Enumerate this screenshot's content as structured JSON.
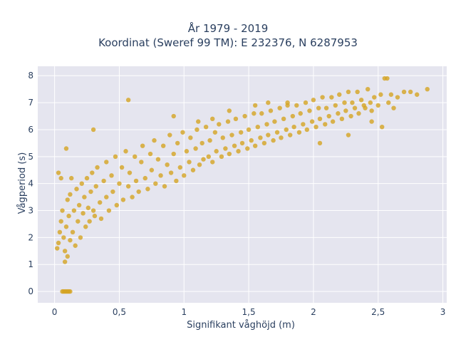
{
  "chart_data": {
    "type": "scatter",
    "title": "År 1979 - 2019",
    "subtitle": "Koordinat (Sweref 99 TM): E 232376, N 6287953",
    "xlabel": "Signifikant våghöjd (m)",
    "ylabel": "Vågperiod (s)",
    "xlim": [
      -0.13,
      3.03
    ],
    "ylim": [
      -0.42,
      8.35
    ],
    "x_ticks": [
      0,
      0.5,
      1,
      1.5,
      2,
      2.5,
      3
    ],
    "x_tick_labels": [
      "0",
      "0,5",
      "1",
      "1,5",
      "2",
      "2,5",
      "3"
    ],
    "y_ticks": [
      0,
      1,
      2,
      3,
      4,
      5,
      6,
      7,
      8
    ],
    "y_tick_labels": [
      "0",
      "1",
      "2",
      "3",
      "4",
      "5",
      "6",
      "7",
      "8"
    ],
    "grid": true,
    "marker_color": "#d4a422",
    "plot_background": "#e5e5ef",
    "series": [
      {
        "points": [
          [
            0.02,
            1.6
          ],
          [
            0.03,
            1.8
          ],
          [
            0.04,
            2.2
          ],
          [
            0.05,
            2.6
          ],
          [
            0.06,
            3.0
          ],
          [
            0.07,
            2.0
          ],
          [
            0.08,
            1.1
          ],
          [
            0.08,
            1.5
          ],
          [
            0.09,
            2.4
          ],
          [
            0.1,
            1.3
          ],
          [
            0.1,
            3.4
          ],
          [
            0.11,
            2.8
          ],
          [
            0.12,
            1.9
          ],
          [
            0.12,
            3.6
          ],
          [
            0.13,
            4.2
          ],
          [
            0.14,
            2.2
          ],
          [
            0.15,
            3.0
          ],
          [
            0.16,
            1.7
          ],
          [
            0.17,
            3.8
          ],
          [
            0.18,
            2.6
          ],
          [
            0.19,
            3.2
          ],
          [
            0.2,
            2.0
          ],
          [
            0.21,
            4.0
          ],
          [
            0.22,
            2.9
          ],
          [
            0.23,
            3.5
          ],
          [
            0.24,
            2.4
          ],
          [
            0.25,
            4.2
          ],
          [
            0.26,
            3.1
          ],
          [
            0.27,
            2.6
          ],
          [
            0.28,
            3.7
          ],
          [
            0.29,
            4.4
          ],
          [
            0.3,
            3.0
          ],
          [
            0.31,
            2.8
          ],
          [
            0.32,
            3.9
          ],
          [
            0.33,
            4.6
          ],
          [
            0.35,
            3.3
          ],
          [
            0.36,
            2.7
          ],
          [
            0.38,
            4.1
          ],
          [
            0.4,
            3.5
          ],
          [
            0.4,
            4.8
          ],
          [
            0.42,
            3.0
          ],
          [
            0.44,
            4.3
          ],
          [
            0.45,
            3.7
          ],
          [
            0.47,
            5.0
          ],
          [
            0.48,
            3.2
          ],
          [
            0.5,
            4.0
          ],
          [
            0.52,
            4.6
          ],
          [
            0.53,
            3.4
          ],
          [
            0.55,
            5.2
          ],
          [
            0.57,
            3.9
          ],
          [
            0.58,
            4.4
          ],
          [
            0.6,
            3.5
          ],
          [
            0.62,
            5.0
          ],
          [
            0.63,
            4.1
          ],
          [
            0.65,
            3.7
          ],
          [
            0.67,
            4.8
          ],
          [
            0.68,
            5.4
          ],
          [
            0.7,
            4.2
          ],
          [
            0.72,
            3.8
          ],
          [
            0.74,
            5.1
          ],
          [
            0.75,
            4.5
          ],
          [
            0.77,
            5.6
          ],
          [
            0.78,
            4.0
          ],
          [
            0.8,
            4.9
          ],
          [
            0.82,
            4.3
          ],
          [
            0.84,
            5.4
          ],
          [
            0.85,
            3.9
          ],
          [
            0.87,
            4.7
          ],
          [
            0.89,
            5.8
          ],
          [
            0.9,
            4.4
          ],
          [
            0.92,
            5.1
          ],
          [
            0.94,
            4.1
          ],
          [
            0.95,
            5.5
          ],
          [
            0.97,
            4.6
          ],
          [
            0.99,
            5.9
          ],
          [
            1.0,
            4.3
          ],
          [
            1.02,
            5.2
          ],
          [
            1.04,
            4.8
          ],
          [
            1.05,
            5.7
          ],
          [
            1.07,
            4.5
          ],
          [
            1.09,
            5.3
          ],
          [
            1.1,
            6.0
          ],
          [
            1.12,
            4.7
          ],
          [
            1.14,
            5.5
          ],
          [
            1.15,
            4.9
          ],
          [
            1.17,
            6.1
          ],
          [
            1.19,
            5.0
          ],
          [
            1.2,
            5.6
          ],
          [
            1.22,
            4.8
          ],
          [
            1.24,
            5.9
          ],
          [
            1.25,
            5.2
          ],
          [
            1.27,
            6.2
          ],
          [
            1.29,
            5.0
          ],
          [
            1.3,
            5.7
          ],
          [
            1.32,
            5.3
          ],
          [
            1.34,
            6.3
          ],
          [
            1.35,
            5.1
          ],
          [
            1.37,
            5.8
          ],
          [
            1.39,
            5.4
          ],
          [
            1.4,
            6.4
          ],
          [
            1.42,
            5.2
          ],
          [
            1.44,
            5.9
          ],
          [
            1.45,
            5.5
          ],
          [
            1.47,
            6.5
          ],
          [
            1.49,
            5.3
          ],
          [
            1.5,
            6.0
          ],
          [
            1.52,
            5.6
          ],
          [
            1.54,
            6.6
          ],
          [
            1.55,
            5.4
          ],
          [
            1.57,
            6.1
          ],
          [
            1.59,
            5.7
          ],
          [
            1.6,
            6.6
          ],
          [
            1.62,
            5.5
          ],
          [
            1.64,
            6.2
          ],
          [
            1.65,
            5.8
          ],
          [
            1.67,
            6.7
          ],
          [
            1.69,
            5.6
          ],
          [
            1.7,
            6.3
          ],
          [
            1.72,
            5.9
          ],
          [
            1.74,
            6.8
          ],
          [
            1.75,
            5.7
          ],
          [
            1.77,
            6.4
          ],
          [
            1.79,
            6.0
          ],
          [
            1.8,
            6.9
          ],
          [
            1.82,
            5.8
          ],
          [
            1.84,
            6.5
          ],
          [
            1.85,
            6.1
          ],
          [
            1.87,
            6.9
          ],
          [
            1.89,
            5.9
          ],
          [
            1.9,
            6.6
          ],
          [
            1.92,
            6.2
          ],
          [
            1.94,
            7.0
          ],
          [
            1.95,
            6.0
          ],
          [
            1.97,
            6.7
          ],
          [
            1.99,
            6.3
          ],
          [
            2.0,
            7.1
          ],
          [
            2.02,
            6.1
          ],
          [
            2.04,
            6.8
          ],
          [
            2.05,
            6.4
          ],
          [
            2.07,
            7.2
          ],
          [
            2.09,
            6.2
          ],
          [
            2.1,
            6.8
          ],
          [
            2.12,
            6.5
          ],
          [
            2.14,
            7.2
          ],
          [
            2.15,
            6.3
          ],
          [
            2.17,
            6.9
          ],
          [
            2.19,
            6.6
          ],
          [
            2.2,
            7.3
          ],
          [
            2.22,
            6.4
          ],
          [
            2.24,
            7.0
          ],
          [
            2.25,
            6.7
          ],
          [
            2.27,
            7.4
          ],
          [
            2.29,
            6.5
          ],
          [
            2.3,
            7.0
          ],
          [
            2.32,
            6.8
          ],
          [
            2.34,
            7.4
          ],
          [
            2.35,
            6.6
          ],
          [
            2.37,
            7.1
          ],
          [
            2.39,
            6.9
          ],
          [
            2.4,
            6.8
          ],
          [
            2.42,
            7.5
          ],
          [
            2.44,
            7.0
          ],
          [
            2.45,
            6.7
          ],
          [
            2.47,
            7.2
          ],
          [
            2.5,
            6.9
          ],
          [
            2.52,
            7.3
          ],
          [
            2.55,
            7.9
          ],
          [
            2.57,
            7.9
          ],
          [
            2.58,
            7.0
          ],
          [
            2.6,
            7.3
          ],
          [
            2.62,
            6.8
          ],
          [
            2.65,
            7.2
          ],
          [
            2.7,
            7.4
          ],
          [
            2.75,
            7.4
          ],
          [
            2.8,
            7.3
          ],
          [
            2.88,
            7.5
          ],
          [
            2.05,
            5.5
          ],
          [
            2.27,
            5.8
          ],
          [
            2.45,
            6.3
          ],
          [
            2.53,
            6.1
          ],
          [
            0.06,
            0.0
          ],
          [
            0.07,
            0.0
          ],
          [
            0.08,
            0.0
          ],
          [
            0.09,
            0.0
          ],
          [
            0.1,
            0.0
          ],
          [
            0.11,
            0.0
          ],
          [
            0.12,
            0.0
          ],
          [
            0.09,
            5.3
          ],
          [
            0.3,
            6.0
          ],
          [
            0.57,
            7.1
          ],
          [
            0.92,
            6.5
          ],
          [
            1.11,
            6.3
          ],
          [
            1.22,
            6.4
          ],
          [
            1.35,
            6.7
          ],
          [
            1.55,
            6.9
          ],
          [
            1.65,
            7.0
          ],
          [
            1.8,
            7.0
          ],
          [
            0.05,
            4.2
          ],
          [
            0.03,
            4.4
          ]
        ]
      }
    ]
  }
}
